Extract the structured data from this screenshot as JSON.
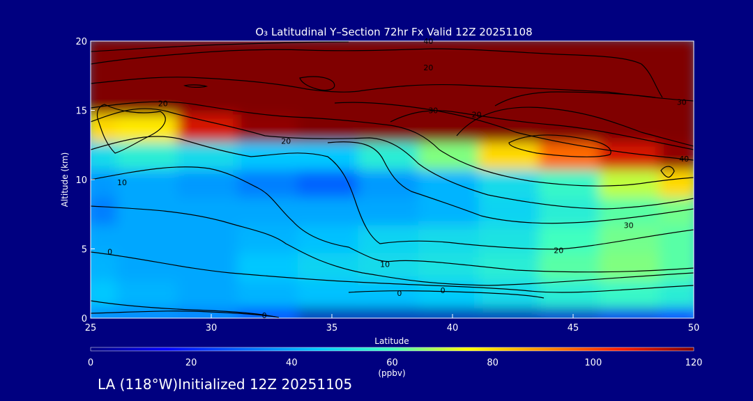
{
  "chart_data": {
    "type": "heatmap",
    "title": "O₃ Latitudinal Y–Section 72hr  Fx Valid 12Z 20251108",
    "xlabel": "Latitude",
    "ylabel": "Altitude (km)",
    "xlim": [
      25,
      50
    ],
    "ylim": [
      0,
      20
    ],
    "xticks": [
      25,
      30,
      35,
      40,
      45,
      50
    ],
    "yticks": [
      0,
      5,
      10,
      15,
      20
    ],
    "colorbar": {
      "label": "(ppbv)",
      "range": [
        0,
        120
      ],
      "ticks": [
        0,
        20,
        40,
        60,
        80,
        100,
        120
      ]
    },
    "grid_lat": [
      25,
      27.5,
      30,
      32.5,
      35,
      37.5,
      40,
      42.5,
      45,
      47.5,
      50
    ],
    "grid_alt": [
      0,
      2,
      4,
      6,
      8,
      10,
      12,
      14,
      16,
      18,
      20
    ],
    "values_ppbv": [
      [
        35,
        35,
        34,
        25,
        5,
        5,
        5,
        5,
        8,
        12,
        20
      ],
      [
        45,
        42,
        40,
        42,
        44,
        44,
        46,
        50,
        55,
        58,
        55
      ],
      [
        42,
        40,
        40,
        45,
        48,
        50,
        52,
        55,
        62,
        65,
        62
      ],
      [
        40,
        40,
        40,
        42,
        44,
        48,
        50,
        52,
        60,
        64,
        62
      ],
      [
        34,
        40,
        40,
        40,
        40,
        40,
        42,
        48,
        55,
        62,
        64
      ],
      [
        38,
        40,
        38,
        34,
        30,
        38,
        42,
        50,
        58,
        70,
        80
      ],
      [
        50,
        55,
        50,
        45,
        45,
        55,
        65,
        80,
        95,
        110,
        118
      ],
      [
        80,
        78,
        110,
        118,
        120,
        120,
        120,
        120,
        120,
        120,
        120
      ],
      [
        120,
        120,
        120,
        120,
        120,
        120,
        120,
        120,
        120,
        120,
        120
      ],
      [
        120,
        120,
        120,
        120,
        120,
        120,
        120,
        120,
        120,
        120,
        120
      ],
      [
        120,
        120,
        120,
        120,
        120,
        120,
        120,
        120,
        120,
        120,
        120
      ]
    ],
    "contour_labels": [
      {
        "text": "0",
        "lat": 25.8,
        "alt": 4.8
      },
      {
        "text": "0",
        "lat": 32.2,
        "alt": 0.2
      },
      {
        "text": "0",
        "lat": 37.8,
        "alt": 1.8
      },
      {
        "text": "0",
        "lat": 39.6,
        "alt": 2.0
      },
      {
        "text": "10",
        "lat": 26.3,
        "alt": 9.8
      },
      {
        "text": "10",
        "lat": 37.2,
        "alt": 3.9
      },
      {
        "text": "20",
        "lat": 28.0,
        "alt": 15.5
      },
      {
        "text": "20",
        "lat": 33.1,
        "alt": 12.8
      },
      {
        "text": "20",
        "lat": 44.4,
        "alt": 4.9
      },
      {
        "text": "20",
        "lat": 41.0,
        "alt": 14.7
      },
      {
        "text": "20",
        "lat": 39.0,
        "alt": 18.1
      },
      {
        "text": "30",
        "lat": 39.2,
        "alt": 15.0
      },
      {
        "text": "30",
        "lat": 47.3,
        "alt": 6.7
      },
      {
        "text": "30",
        "lat": 49.5,
        "alt": 15.6
      },
      {
        "text": "40",
        "lat": 49.6,
        "alt": 11.5
      },
      {
        "text": "40",
        "lat": 39.0,
        "alt": 20.0
      }
    ]
  },
  "footer": {
    "text": "LA (118°W)Initialized 12Z 20251105"
  }
}
